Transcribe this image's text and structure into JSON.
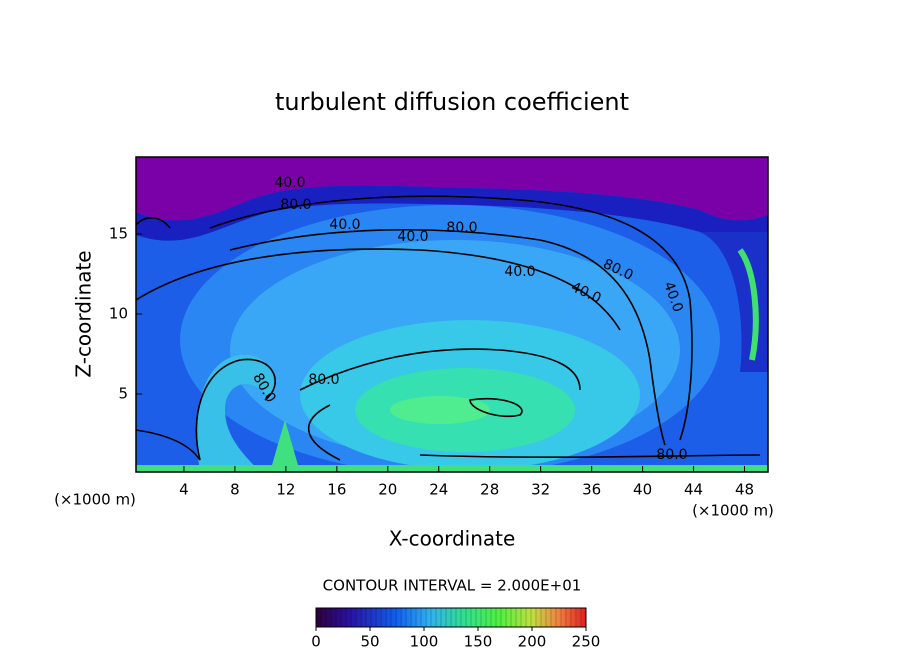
{
  "chart_data": {
    "type": "contour",
    "title": "turbulent diffusion coefficient",
    "x_label": "X-coordinate",
    "y_label": "Z-coordinate",
    "x_unit_label": "(×1000 m)",
    "xlim": [
      0,
      50
    ],
    "xticks": [
      4,
      8,
      12,
      16,
      20,
      24,
      28,
      32,
      36,
      40,
      44,
      48
    ],
    "ylim": [
      0,
      20
    ],
    "yticks": [
      5,
      10,
      15
    ],
    "contour_labels": [
      "40.0",
      "80.0",
      "40.0",
      "40.0",
      "80.0",
      "40.0",
      "80.0",
      "40.0",
      "40.0",
      "80.0",
      "80.0",
      "80.0"
    ],
    "colorbar_title": "CONTOUR INTERVAL = 2.000E+01",
    "colorbar_lim": [
      0,
      250
    ],
    "colorbar_ticks": [
      0,
      50,
      100,
      150,
      200,
      250
    ]
  }
}
